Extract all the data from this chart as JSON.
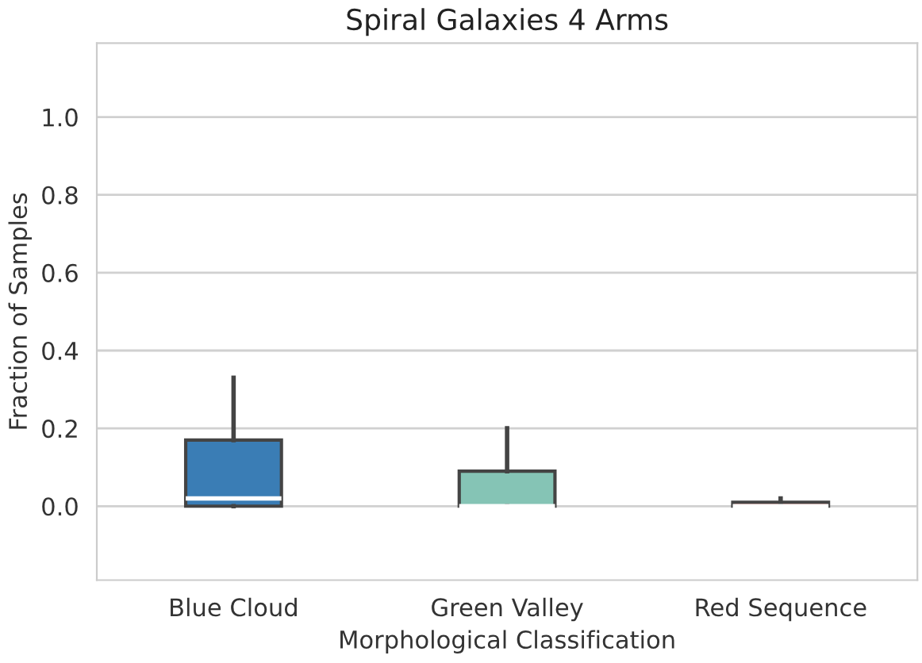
{
  "chart_data": {
    "type": "box",
    "title": "Spiral Galaxies 4 Arms",
    "xlabel": "Morphological Classification",
    "ylabel": "Fraction of Samples",
    "categories": [
      "Blue Cloud",
      "Green Valley",
      "Red Sequence"
    ],
    "colors": [
      "#3a7db5",
      "#85c4b5",
      "#cd5349"
    ],
    "boxes": [
      {
        "low": 0.0,
        "q1": 0.0,
        "median": 0.02,
        "q3": 0.17,
        "high": 0.33
      },
      {
        "low": 0.0,
        "q1": 0.0,
        "median": 0.0,
        "q3": 0.09,
        "high": 0.2
      },
      {
        "low": 0.0,
        "q1": 0.0,
        "median": 0.0,
        "q3": 0.01,
        "high": 0.02
      }
    ],
    "ylim": [
      -0.19,
      1.19
    ],
    "yticks": [
      {
        "value": 0,
        "label": "0.0"
      },
      0.2,
      0.4,
      0.6,
      0.8,
      {
        "value": 1,
        "label": "1.0"
      }
    ],
    "grid": "y"
  }
}
